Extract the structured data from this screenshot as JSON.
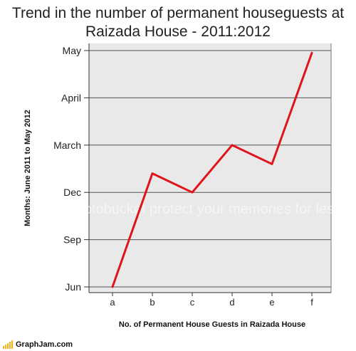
{
  "chart_data": {
    "type": "line",
    "title": "Trend in the number of permanent houseguests at Raizada House - 2011:2012",
    "title_lines": [
      "Trend in the number of permanent houseguests at",
      "Raizada House - 2011:2012"
    ],
    "xlabel": "No. of Permanent House Guests in Raizada House",
    "ylabel": "Months: June 2011 to May 2012",
    "categories": [
      "a",
      "b",
      "c",
      "d",
      "e",
      "f"
    ],
    "y_ticks": [
      "Jun",
      "Sep",
      "Dec",
      "March",
      "April",
      "May"
    ],
    "series": [
      {
        "values": [
          0,
          2.4,
          2.0,
          3.0,
          2.6,
          4.95
        ],
        "color": "#e0141b"
      }
    ],
    "ylim": [
      0,
      5
    ],
    "grid": true,
    "legend": "none",
    "plot_background": "#e9e9e9"
  },
  "watermark": "photobucket  protect your memories for less!",
  "footer": {
    "brand": "GraphJam.com",
    "bar_color": "#f2b21b"
  }
}
